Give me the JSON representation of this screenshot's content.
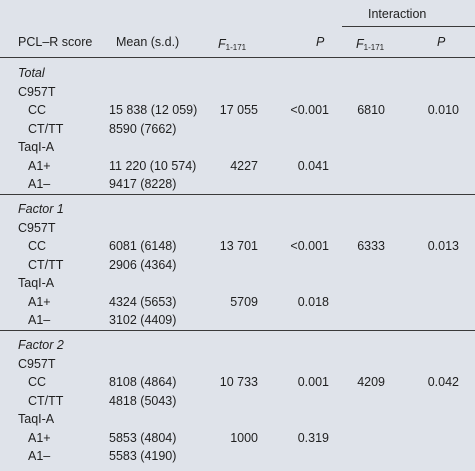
{
  "header": {
    "interaction": "Interaction",
    "col_score": "PCL–R score",
    "col_mean": "Mean (s.d.)",
    "col_f_letter": "F",
    "col_f_sub": "1-171",
    "col_p": "P"
  },
  "sections": [
    {
      "title": "Total",
      "groups": [
        {
          "gene": "C957T",
          "rows": [
            {
              "label": "CC",
              "mean": "15 838 (12 059)",
              "f": "17 055",
              "p": "<0.001",
              "fi": "6810",
              "pi": "0.010"
            },
            {
              "label": "CT/TT",
              "mean": "8590 (7662)",
              "f": "",
              "p": "",
              "fi": "",
              "pi": ""
            }
          ]
        },
        {
          "gene": "TaqI-A",
          "rows": [
            {
              "label": "A1+",
              "mean": "11 220 (10 574)",
              "f": "4227",
              "p": "0.041",
              "fi": "",
              "pi": ""
            },
            {
              "label": "A1–",
              "mean": "9417 (8228)",
              "f": "",
              "p": "",
              "fi": "",
              "pi": ""
            }
          ]
        }
      ]
    },
    {
      "title": "Factor 1",
      "groups": [
        {
          "gene": "C957T",
          "rows": [
            {
              "label": "CC",
              "mean": "6081 (6148)",
              "f": "13 701",
              "p": "<0.001",
              "fi": "6333",
              "pi": "0.013"
            },
            {
              "label": "CT/TT",
              "mean": "2906 (4364)",
              "f": "",
              "p": "",
              "fi": "",
              "pi": ""
            }
          ]
        },
        {
          "gene": "TaqI-A",
          "rows": [
            {
              "label": "A1+",
              "mean": "4324 (5653)",
              "f": "5709",
              "p": "0.018",
              "fi": "",
              "pi": ""
            },
            {
              "label": "A1–",
              "mean": "3102 (4409)",
              "f": "",
              "p": "",
              "fi": "",
              "pi": ""
            }
          ]
        }
      ]
    },
    {
      "title": "Factor 2",
      "groups": [
        {
          "gene": "C957T",
          "rows": [
            {
              "label": "CC",
              "mean": "8108 (4864)",
              "f": "10 733",
              "p": "0.001",
              "fi": "4209",
              "pi": "0.042"
            },
            {
              "label": "CT/TT",
              "mean": "4818 (5043)",
              "f": "",
              "p": "",
              "fi": "",
              "pi": ""
            }
          ]
        },
        {
          "gene": "TaqI-A",
          "rows": [
            {
              "label": "A1+",
              "mean": "5853 (4804)",
              "f": "1000",
              "p": "0.319",
              "fi": "",
              "pi": ""
            },
            {
              "label": "A1–",
              "mean": "5583 (4190)",
              "f": "",
              "p": "",
              "fi": "",
              "pi": ""
            }
          ]
        }
      ]
    }
  ]
}
